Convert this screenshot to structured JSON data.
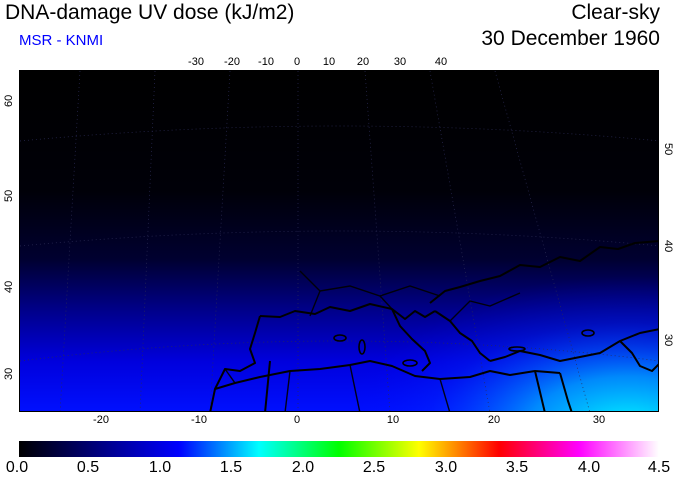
{
  "header": {
    "title": "DNA-damage UV dose (kJ/m2)",
    "subtitle": "MSR - KNMI",
    "subtitle_color": "#0000ff",
    "condition": "Clear-sky",
    "date": "30 December 1960"
  },
  "map": {
    "region": "Europe / Mediterranean",
    "top_lon_ticks": [
      "-30",
      "-20",
      "-10",
      "0",
      "10",
      "20",
      "30",
      "40"
    ],
    "bottom_lon_ticks": [
      "-20",
      "-10",
      "0",
      "10",
      "20",
      "30"
    ],
    "left_lat_ticks": [
      "60",
      "50",
      "40",
      "30"
    ],
    "right_lat_ticks": [
      "50",
      "40",
      "30"
    ]
  },
  "colorbar": {
    "labels": [
      "0.0",
      "0.5",
      "1.0",
      "1.5",
      "2.0",
      "2.5",
      "3.0",
      "3.5",
      "4.0",
      "4.5"
    ],
    "colors": [
      "#000000",
      "#000080",
      "#0000ff",
      "#00ffff",
      "#00ff00",
      "#ffff00",
      "#ff0000",
      "#ff00ff",
      "#ffffff"
    ]
  }
}
